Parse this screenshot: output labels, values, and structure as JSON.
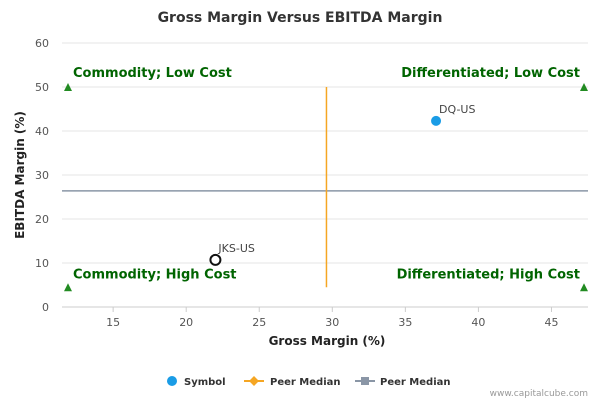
{
  "chart_data": {
    "type": "scatter",
    "title": "Gross Margin Versus EBITDA Margin",
    "xlabel": "Gross Margin (%)",
    "ylabel": "EBITDA Margin (%)",
    "xlim": [
      11.5,
      47.5
    ],
    "ylim": [
      0,
      60
    ],
    "xticks": [
      15,
      20,
      25,
      30,
      35,
      40,
      45
    ],
    "yticks": [
      0,
      10,
      20,
      30,
      40,
      50,
      60
    ],
    "peer_median_x": 29.6,
    "peer_median_y": 26.4,
    "points": [
      {
        "label": "DQ-US",
        "x": 37.1,
        "y": 42.3,
        "kind": "symbol"
      },
      {
        "label": "JKS-US",
        "x": 22.0,
        "y": 10.7,
        "kind": "peer"
      }
    ],
    "quadrants": {
      "top_left": "Commodity; Low Cost",
      "top_right": "Differentiated; Low Cost",
      "bottom_left": "Commodity; High Cost",
      "bottom_right": "Differentiated; High Cost"
    },
    "legend": [
      {
        "label": "Symbol",
        "marker": "circle",
        "color": "#1a9ce6"
      },
      {
        "label": "Peer Median",
        "marker": "line-diamond",
        "color": "#f5a623"
      },
      {
        "label": "Peer Median",
        "marker": "line-square",
        "color": "#8a96a6"
      }
    ],
    "colors": {
      "symbol": "#1a9ce6",
      "median_vertical": "#f5a623",
      "median_horizontal": "#8a96a6",
      "quadrant_text": "#006400",
      "grid": "#e6e6e6"
    }
  },
  "credit": "www.capitalcube.com"
}
